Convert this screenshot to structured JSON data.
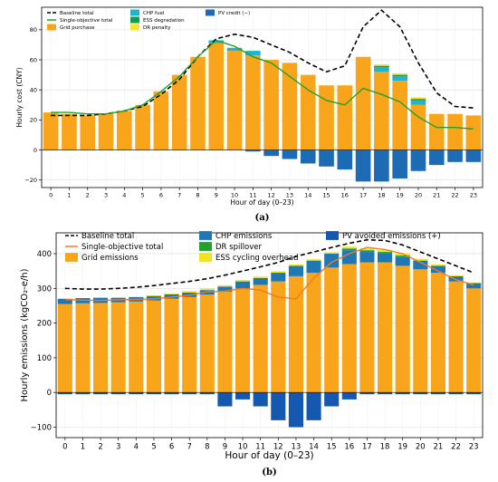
{
  "chart_data": [
    {
      "type": "bar",
      "panel_label": "(a)",
      "ylabel": "Hourly cost (CNY)",
      "xlabel": "Hour of day (0–23)",
      "ylim": [
        -25,
        95
      ],
      "yticks": [
        -20,
        0,
        20,
        40,
        60,
        80
      ],
      "categories": [
        "0",
        "1",
        "2",
        "3",
        "4",
        "5",
        "6",
        "7",
        "8",
        "9",
        "10",
        "11",
        "12",
        "13",
        "14",
        "15",
        "16",
        "17",
        "18",
        "19",
        "20",
        "21",
        "22",
        "23"
      ],
      "stacked_series": [
        {
          "name": "Grid purchase",
          "color": "#f8a51b",
          "values": [
            25,
            24,
            23,
            24,
            26,
            30,
            39,
            50,
            62,
            71,
            66,
            63,
            60,
            58,
            50,
            43,
            43,
            62,
            52,
            46,
            30,
            24,
            24,
            23
          ]
        },
        {
          "name": "CHP fuel",
          "color": "#20b4cf",
          "values": [
            0,
            0,
            0,
            0,
            0,
            0,
            0,
            0,
            0,
            2,
            2,
            3,
            0,
            0,
            0,
            0,
            0,
            0,
            3,
            3,
            3,
            0,
            0,
            0
          ]
        },
        {
          "name": "ESS degradation",
          "color": "#0f9e4f",
          "values": [
            0,
            0,
            0,
            0,
            0,
            0,
            0,
            0,
            0,
            0,
            0,
            0,
            0,
            0,
            0,
            0,
            0,
            0,
            1,
            1,
            1,
            0,
            0,
            0
          ]
        },
        {
          "name": "DR penalty",
          "color": "#f5e42a",
          "values": [
            0,
            0,
            0,
            0,
            0,
            0,
            0,
            0,
            0,
            0,
            0,
            0,
            0,
            0,
            0,
            0,
            0,
            0,
            1,
            1,
            1,
            0,
            0,
            0
          ]
        },
        {
          "name": "PV credit (−)",
          "color": "#1d6bb5",
          "values": [
            0,
            0,
            0,
            0,
            0,
            0,
            0,
            0,
            0,
            0,
            0,
            -1,
            -4,
            -6,
            -9,
            -11,
            -13,
            -21,
            -21,
            -19,
            -14,
            -10,
            -8,
            -8
          ]
        }
      ],
      "lines": [
        {
          "name": "Baseline total",
          "style": "dashed",
          "color": "#000000",
          "values": [
            23,
            23,
            23,
            24,
            26,
            29,
            37,
            47,
            62,
            74,
            77,
            75,
            70,
            65,
            58,
            52,
            56,
            82,
            93,
            82,
            58,
            38,
            29,
            28
          ]
        },
        {
          "name": "Single-objective total",
          "style": "solid",
          "color": "#1fa32a",
          "values": [
            25,
            25,
            24,
            24,
            26,
            30,
            39,
            49,
            62,
            73,
            69,
            62,
            58,
            49,
            40,
            33,
            30,
            41,
            37,
            32,
            22,
            15,
            15,
            14
          ]
        }
      ],
      "legend": {
        "position": "top-left",
        "items": [
          {
            "name": "Baseline total",
            "kind": "dashed",
            "color": "#000000"
          },
          {
            "name": "Single-objective total",
            "kind": "line",
            "color": "#1fa32a"
          },
          {
            "name": "Grid purchase",
            "kind": "patch",
            "color": "#f8a51b"
          },
          {
            "name": "CHP fuel",
            "kind": "patch",
            "color": "#20b4cf"
          },
          {
            "name": "ESS degradation",
            "kind": "patch",
            "color": "#0f9e4f"
          },
          {
            "name": "DR penalty",
            "kind": "patch",
            "color": "#f5e42a"
          },
          {
            "name": "PV credit (−)",
            "kind": "patch",
            "color": "#1d6bb5"
          }
        ]
      }
    },
    {
      "type": "bar",
      "panel_label": "(b)",
      "ylabel": "Hourly emissions (kgCO₂-e/h)",
      "xlabel": "Hour of day (0–23)",
      "ylim": [
        -130,
        460
      ],
      "yticks": [
        -100,
        0,
        100,
        200,
        300,
        400
      ],
      "categories": [
        "0",
        "1",
        "2",
        "3",
        "4",
        "5",
        "6",
        "7",
        "8",
        "9",
        "10",
        "11",
        "12",
        "13",
        "14",
        "15",
        "16",
        "17",
        "18",
        "19",
        "20",
        "21",
        "22",
        "23"
      ],
      "stacked_series": [
        {
          "name": "Grid emissions",
          "color": "#f8a51b",
          "values": [
            255,
            257,
            258,
            260,
            262,
            265,
            270,
            275,
            282,
            290,
            300,
            310,
            320,
            335,
            345,
            360,
            370,
            375,
            375,
            365,
            355,
            345,
            320,
            300
          ]
        },
        {
          "name": "CHP emissions",
          "color": "#1f78b4",
          "values": [
            15,
            15,
            15,
            13,
            13,
            13,
            13,
            13,
            13,
            15,
            20,
            20,
            25,
            30,
            35,
            40,
            40,
            30,
            25,
            25,
            25,
            20,
            15,
            15
          ]
        },
        {
          "name": "DR spillover",
          "color": "#22a12e",
          "values": [
            0,
            0,
            0,
            0,
            0,
            0,
            0,
            0,
            0,
            0,
            0,
            0,
            0,
            0,
            0,
            0,
            5,
            5,
            5,
            5,
            0,
            0,
            0,
            0
          ]
        },
        {
          "name": "ESS cycling overhead",
          "color": "#f0e41c",
          "values": [
            0,
            0,
            0,
            0,
            0,
            2,
            2,
            4,
            4,
            4,
            4,
            4,
            4,
            4,
            4,
            4,
            5,
            5,
            5,
            5,
            5,
            4,
            3,
            2
          ]
        },
        {
          "name": "PV avoided emissions (+)",
          "color": "#1558b0",
          "values": [
            -5,
            -5,
            -5,
            -5,
            -5,
            -5,
            -5,
            -5,
            -5,
            -40,
            -20,
            -40,
            -80,
            -100,
            -80,
            -40,
            -20,
            -5,
            -5,
            -5,
            -5,
            -5,
            -5,
            -5
          ]
        }
      ],
      "lines": [
        {
          "name": "Baseline total",
          "style": "dashed",
          "color": "#000000",
          "values": [
            300,
            298,
            298,
            300,
            303,
            308,
            314,
            320,
            328,
            338,
            350,
            362,
            375,
            392,
            405,
            418,
            430,
            440,
            438,
            425,
            405,
            385,
            365,
            345
          ]
        },
        {
          "name": "Single-objective total",
          "style": "solid",
          "color": "#f07a24",
          "values": [
            268,
            266,
            265,
            267,
            268,
            270,
            275,
            280,
            290,
            292,
            300,
            295,
            275,
            270,
            330,
            375,
            400,
            418,
            412,
            400,
            375,
            350,
            325,
            310
          ]
        }
      ],
      "legend": {
        "position": "top-left",
        "items": [
          {
            "name": "Baseline total",
            "kind": "dashed",
            "color": "#000000"
          },
          {
            "name": "Single-objective total",
            "kind": "line",
            "color": "#f07a24"
          },
          {
            "name": "Grid emissions",
            "kind": "patch",
            "color": "#f8a51b"
          },
          {
            "name": "CHP emissions",
            "kind": "patch",
            "color": "#1f78b4"
          },
          {
            "name": "DR spillover",
            "kind": "patch",
            "color": "#22a12e"
          },
          {
            "name": "ESS cycling overhead",
            "kind": "patch",
            "color": "#f0e41c"
          },
          {
            "name": "PV avoided emissions (+)",
            "kind": "patch",
            "color": "#1558b0"
          }
        ]
      }
    }
  ]
}
